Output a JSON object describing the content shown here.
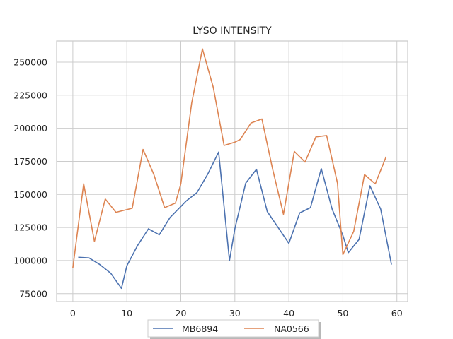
{
  "chart_data": {
    "type": "line",
    "title": "LYSO INTENSITY",
    "xlabel": "",
    "ylabel": "",
    "xlim": [
      -3,
      62
    ],
    "ylim": [
      69000,
      266000
    ],
    "xticks": [
      0,
      10,
      20,
      30,
      40,
      50,
      60
    ],
    "yticks": [
      75000,
      100000,
      125000,
      150000,
      175000,
      200000,
      225000,
      250000
    ],
    "xtick_labels": [
      "0",
      "10",
      "20",
      "30",
      "40",
      "50",
      "60"
    ],
    "ytick_labels": [
      "75000",
      "100000",
      "125000",
      "150000",
      "175000",
      "200000",
      "225000",
      "250000"
    ],
    "grid": true,
    "legend_position": "bottom-center",
    "series": [
      {
        "name": "MB6894",
        "color": "#4c72b0",
        "x": [
          1,
          3,
          5,
          7,
          9,
          10,
          12,
          14,
          16,
          18,
          21,
          23,
          25,
          27,
          29,
          30,
          32,
          34,
          36,
          38,
          40,
          42,
          44,
          46,
          48,
          50,
          51,
          53,
          55,
          57,
          59
        ],
        "y": [
          102500,
          102000,
          97000,
          90500,
          79000,
          96000,
          111500,
          124000,
          119500,
          132500,
          145000,
          151500,
          165500,
          182000,
          100000,
          124000,
          158500,
          169000,
          137000,
          125000,
          113000,
          136000,
          140000,
          169500,
          139000,
          119000,
          106000,
          116000,
          156500,
          139000,
          97000
        ]
      },
      {
        "name": "NA0566",
        "color": "#dd8452",
        "x": [
          0,
          2,
          4,
          6,
          8,
          11,
          13,
          15,
          17,
          19,
          20,
          22,
          24,
          26,
          28,
          30,
          31,
          33,
          35,
          37,
          39,
          41,
          43,
          45,
          47,
          49,
          50,
          52,
          54,
          56,
          58
        ],
        "y": [
          94500,
          158000,
          114500,
          146500,
          136500,
          139500,
          184000,
          165000,
          140000,
          143500,
          158000,
          219000,
          260000,
          231000,
          187000,
          189500,
          191500,
          204000,
          207000,
          169000,
          135000,
          182500,
          174500,
          193500,
          194500,
          158500,
          104500,
          122000,
          165000,
          158000,
          178500
        ]
      }
    ]
  }
}
